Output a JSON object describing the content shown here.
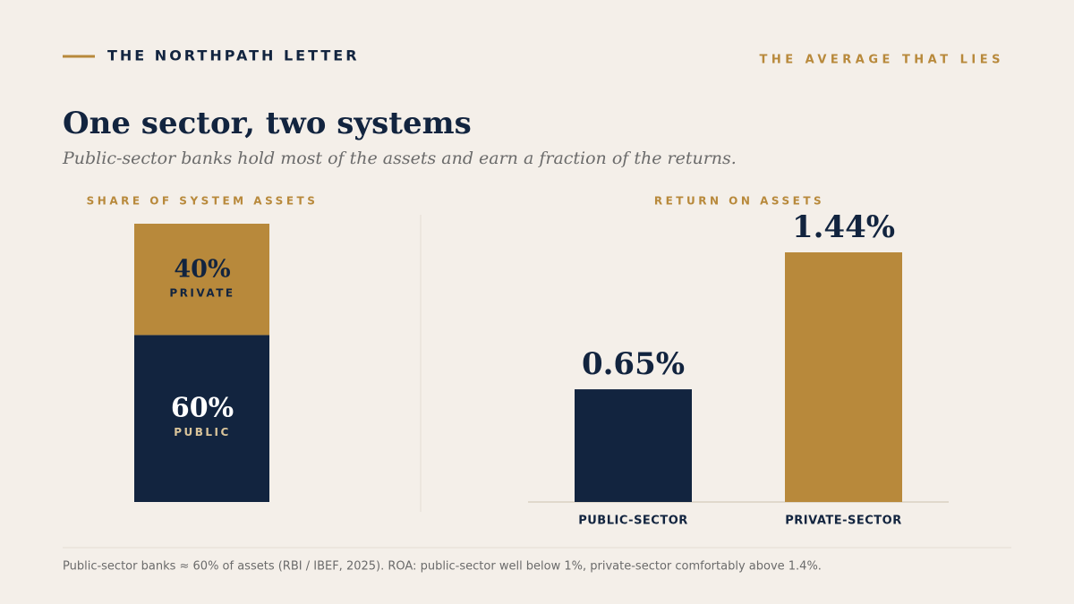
{
  "header": {
    "brand": "THE NORTHPATH LETTER",
    "kicker": "THE AVERAGE THAT LIES"
  },
  "title": "One sector, two systems",
  "subtitle": "Public-sector banks hold most of the assets and earn a fraction of the returns.",
  "footnote": "Public-sector banks ≈ 60% of assets (RBI / IBEF, 2025).  ROA: public-sector well below 1%, private-sector comfortably above 1.4%.",
  "chart_data": [
    {
      "type": "stacked-bar",
      "title": "SHARE OF SYSTEM ASSETS",
      "series": [
        {
          "name": "PUBLIC",
          "color": "#12243f",
          "values": [
            60
          ],
          "value_labels": [
            "60%"
          ]
        },
        {
          "name": "PRIVATE",
          "color": "#b8893b",
          "values": [
            40
          ],
          "value_labels": [
            "40%"
          ]
        }
      ]
    },
    {
      "type": "bar",
      "title": "RETURN ON ASSETS",
      "categories": [
        "PUBLIC-SECTOR",
        "PRIVATE-SECTOR"
      ],
      "values": [
        0.65,
        1.44
      ],
      "value_labels": [
        "0.65%",
        "1.44%"
      ],
      "colors": [
        "#12243f",
        "#b8893b"
      ]
    }
  ]
}
